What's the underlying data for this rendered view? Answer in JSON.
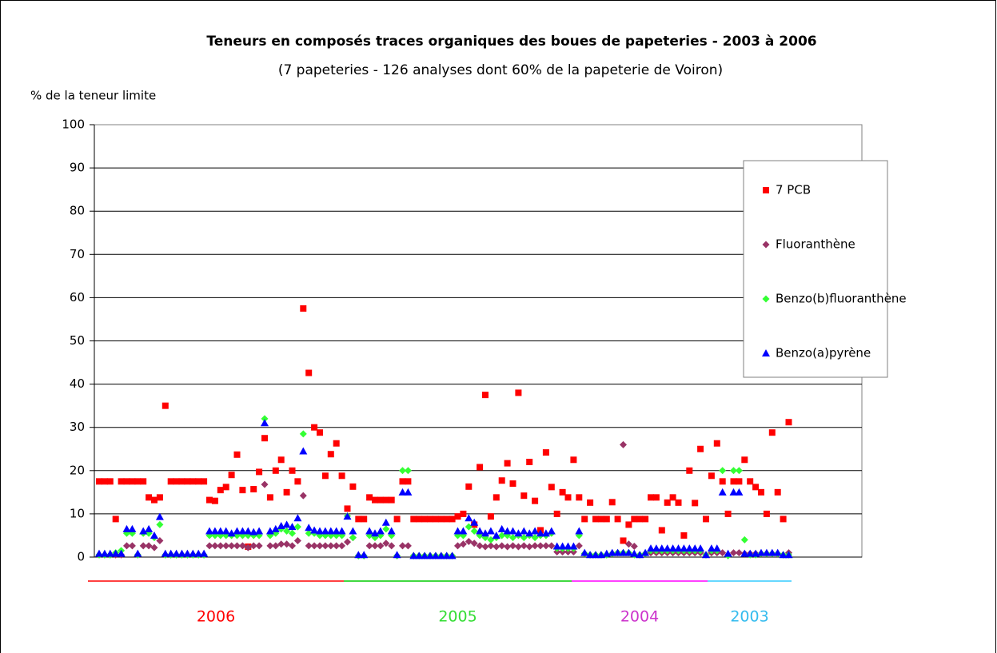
{
  "chart_data": {
    "type": "scatter",
    "title": "Teneurs en composés traces organiques des boues de papeteries - 2003 à 2006",
    "subtitle": "(7 papeteries - 126 analyses dont 60% de la papeterie de Voiron)",
    "y_label": "% de la teneur limite",
    "ylim": [
      0,
      100
    ],
    "yticks": [
      0,
      10,
      20,
      30,
      40,
      50,
      60,
      70,
      80,
      90,
      100
    ],
    "grid": true,
    "legend": "right",
    "periods": [
      {
        "label": "2006",
        "color": "#ff0000",
        "text_color": "#ff0000"
      },
      {
        "label": "2005",
        "color": "#00cc00",
        "text_color": "#33dd33"
      },
      {
        "label": "2004",
        "color": "#ff00ff",
        "text_color": "#cc33cc"
      },
      {
        "label": "2003",
        "color": "#33ccff",
        "text_color": "#33bbee"
      }
    ],
    "series": [
      {
        "name": "7 PCB",
        "color": "#ff0000",
        "marker": "square",
        "values": [
          17.5,
          17.5,
          17.5,
          8.8,
          17.5,
          17.5,
          17.5,
          17.5,
          17.5,
          13.8,
          13.2,
          13.8,
          35,
          17.5,
          17.5,
          17.5,
          17.5,
          17.5,
          17.5,
          17.5,
          13.2,
          13,
          15.5,
          16.2,
          19,
          23.7,
          15.5,
          2.4,
          15.7,
          19.7,
          27.5,
          13.8,
          20,
          22.5,
          15,
          20,
          17.5,
          57.5,
          42.6,
          30,
          28.8,
          18.8,
          23.8,
          26.3,
          18.8,
          11.2,
          16.3,
          8.8,
          8.8,
          13.8,
          13.2,
          13.2,
          13.2,
          13.2,
          8.8,
          17.5,
          17.5,
          8.8,
          8.8,
          8.8,
          8.8,
          8.8,
          8.8,
          8.8,
          8.8,
          9.4,
          10,
          16.3,
          7.5,
          20.8,
          37.5,
          9.4,
          13.8,
          17.7,
          21.7,
          17,
          38,
          14.2,
          22,
          13,
          6.2,
          24.2,
          16.2,
          10,
          15,
          13.8,
          22.5,
          13.8,
          8.8,
          12.6,
          8.8,
          8.8,
          8.8,
          12.7,
          8.8,
          3.8,
          7.5,
          8.8,
          8.8,
          8.8,
          13.8,
          13.8,
          6.2,
          12.6,
          13.8,
          12.6,
          5,
          20,
          12.5,
          25,
          8.8,
          18.8,
          26.3,
          17.5,
          10,
          17.5,
          17.5,
          22.5,
          17.5,
          16.2,
          15,
          10,
          28.8,
          15,
          8.8,
          31.2
        ]
      },
      {
        "name": "Fluoranthène",
        "color": "#993366",
        "marker": "diamond",
        "values": [
          0.5,
          0.5,
          0.5,
          0.5,
          0.5,
          2.6,
          2.6,
          0.5,
          2.6,
          2.6,
          2.2,
          3.8,
          0.5,
          0.5,
          0.5,
          0.5,
          0.5,
          0.5,
          0.5,
          0.5,
          2.6,
          2.6,
          2.6,
          2.6,
          2.6,
          2.6,
          2.6,
          2.2,
          2.6,
          2.6,
          16.8,
          2.6,
          2.6,
          3,
          3,
          2.6,
          3.8,
          14.2,
          2.6,
          2.6,
          2.6,
          2.6,
          2.6,
          2.6,
          2.6,
          3.5,
          4.5,
          0.3,
          0.3,
          2.6,
          2.6,
          2.6,
          3.2,
          2.6,
          0.3,
          2.6,
          2.6,
          0.3,
          0.3,
          0.3,
          0.3,
          0.3,
          0.3,
          0.3,
          0.3,
          2.6,
          3,
          3.6,
          3.2,
          2.6,
          2.4,
          2.6,
          2.4,
          2.6,
          2.4,
          2.6,
          2.4,
          2.6,
          2.4,
          2.6,
          2.6,
          2.6,
          2.6,
          1.2,
          1.2,
          1.2,
          1.2,
          2.6,
          0.8,
          0.5,
          0.5,
          0.5,
          0.5,
          0.8,
          1,
          26,
          3,
          2.5,
          0.5,
          0.8,
          1,
          1,
          1,
          1,
          1,
          1,
          1,
          1,
          1,
          1,
          0.5,
          1,
          1,
          1,
          0.5,
          1,
          1,
          0.8,
          0.8,
          0.8,
          0.8,
          0.8,
          0.8,
          0.8,
          0.5,
          1
        ]
      },
      {
        "name": "Benzo(b)fluoranthène",
        "color": "#33ff33",
        "marker": "diamond",
        "values": [
          0.5,
          0.5,
          0.5,
          1,
          1.5,
          5.5,
          5.5,
          0.5,
          5.5,
          5.5,
          4.5,
          7.5,
          0.5,
          0.5,
          0.5,
          0.5,
          0.5,
          0.5,
          0.5,
          0.5,
          5,
          5,
          5,
          5,
          5,
          5,
          5,
          5,
          5,
          5,
          32,
          5,
          5.5,
          6.5,
          6,
          5.5,
          7,
          28.5,
          5.5,
          5.5,
          5,
          5,
          5,
          5,
          5,
          9.5,
          4.5,
          0.3,
          0.3,
          5,
          4.5,
          5,
          6.5,
          5,
          0.3,
          20,
          20,
          0.3,
          0.3,
          0.3,
          0.3,
          0.3,
          0.3,
          0.3,
          0.3,
          5,
          5,
          7,
          6,
          5,
          4.5,
          4,
          4.5,
          5,
          5,
          4.5,
          5,
          4.5,
          5,
          4.5,
          5,
          5,
          5.5,
          2,
          2,
          2,
          2,
          5,
          0.8,
          0.5,
          0.5,
          0.5,
          0.5,
          0.8,
          1,
          1,
          1,
          0.5,
          0.5,
          0.8,
          1.5,
          1.5,
          1.5,
          1.5,
          1.5,
          1.5,
          1.5,
          1.5,
          1.5,
          1.5,
          0.5,
          1.5,
          1.5,
          20,
          0.3,
          20,
          20,
          4,
          0.5,
          0.5,
          0.8,
          0.8,
          0.8,
          0.8,
          0.5,
          0.5
        ]
      },
      {
        "name": "Benzo(a)pyrène",
        "color": "#0000ff",
        "marker": "triangle",
        "values": [
          0.8,
          0.8,
          0.8,
          0.8,
          0.8,
          6.5,
          6.5,
          0.8,
          6,
          6.5,
          5,
          9.3,
          0.8,
          0.8,
          0.8,
          0.8,
          0.8,
          0.8,
          0.8,
          0.8,
          6,
          6,
          6,
          6,
          5.5,
          6,
          6,
          6,
          5.8,
          6,
          31,
          6,
          6.5,
          7.2,
          7.5,
          7,
          9,
          24.5,
          6.8,
          6.2,
          6,
          6,
          6,
          6,
          6,
          9.4,
          6,
          0.5,
          0.5,
          6,
          5.5,
          6,
          8,
          6,
          0.5,
          15,
          15,
          0.3,
          0.3,
          0.3,
          0.3,
          0.3,
          0.3,
          0.3,
          0.3,
          6,
          6,
          9,
          8,
          6,
          5.5,
          6,
          5,
          6.5,
          6,
          6,
          5.5,
          6,
          5.5,
          6,
          5.5,
          5.5,
          6,
          2.5,
          2.5,
          2.5,
          2.5,
          6,
          1,
          0.5,
          0.5,
          0.5,
          0.8,
          1,
          1,
          1,
          1,
          0.8,
          0.5,
          1,
          2,
          2,
          2,
          2,
          2,
          2,
          2,
          2,
          2,
          2,
          0.5,
          2,
          2,
          15,
          0.8,
          15,
          15,
          0.8,
          0.8,
          0.8,
          1,
          1,
          1,
          1,
          0.5,
          0.5
        ]
      }
    ]
  }
}
